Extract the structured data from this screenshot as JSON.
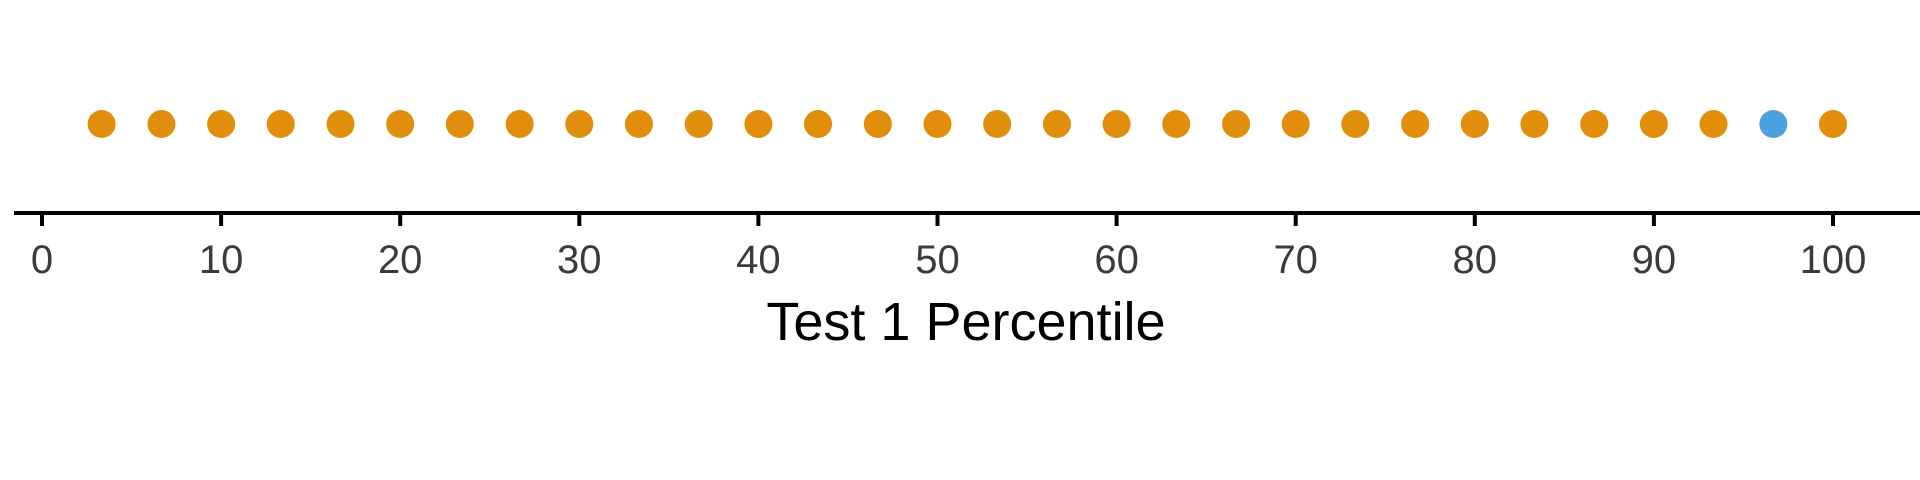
{
  "chart_data": {
    "type": "scatter",
    "title": "",
    "xlabel": "Test 1 Percentile",
    "ylabel": "",
    "xlim": [
      0,
      100
    ],
    "x_ticks": [
      "0",
      "10",
      "20",
      "30",
      "40",
      "50",
      "60",
      "70",
      "80",
      "90",
      "100"
    ],
    "grid": false,
    "legend": "none",
    "colors": {
      "default_point": "#E08E0B",
      "highlight_point": "#4AA3E0",
      "axis": "#000000",
      "tick_label": "#3b3b3b"
    },
    "points": [
      {
        "x": 3.33,
        "highlight": false
      },
      {
        "x": 6.67,
        "highlight": false
      },
      {
        "x": 10,
        "highlight": false
      },
      {
        "x": 13.33,
        "highlight": false
      },
      {
        "x": 16.67,
        "highlight": false
      },
      {
        "x": 20,
        "highlight": false
      },
      {
        "x": 23.33,
        "highlight": false
      },
      {
        "x": 26.67,
        "highlight": false
      },
      {
        "x": 30,
        "highlight": false
      },
      {
        "x": 33.33,
        "highlight": false
      },
      {
        "x": 36.67,
        "highlight": false
      },
      {
        "x": 40,
        "highlight": false
      },
      {
        "x": 43.33,
        "highlight": false
      },
      {
        "x": 46.67,
        "highlight": false
      },
      {
        "x": 50,
        "highlight": false
      },
      {
        "x": 53.33,
        "highlight": false
      },
      {
        "x": 56.67,
        "highlight": false
      },
      {
        "x": 60,
        "highlight": false
      },
      {
        "x": 63.33,
        "highlight": false
      },
      {
        "x": 66.67,
        "highlight": false
      },
      {
        "x": 70,
        "highlight": false
      },
      {
        "x": 73.33,
        "highlight": false
      },
      {
        "x": 76.67,
        "highlight": false
      },
      {
        "x": 80,
        "highlight": false
      },
      {
        "x": 83.33,
        "highlight": false
      },
      {
        "x": 86.67,
        "highlight": false
      },
      {
        "x": 90,
        "highlight": false
      },
      {
        "x": 93.33,
        "highlight": false
      },
      {
        "x": 96.67,
        "highlight": true
      },
      {
        "x": 100,
        "highlight": false
      }
    ]
  }
}
